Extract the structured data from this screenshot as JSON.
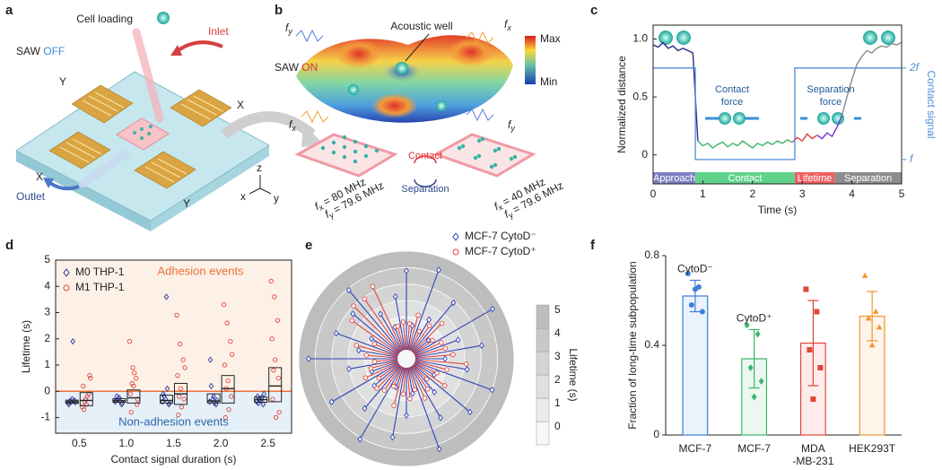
{
  "panel_labels": [
    "a",
    "b",
    "c",
    "d",
    "e",
    "f"
  ],
  "diagram_a": {
    "cell_loading": "Cell loading",
    "inlet": "Inlet",
    "saw": "SAW",
    "state": "OFF",
    "electrodes": [
      "Y",
      "X",
      "X",
      "Y"
    ],
    "outlet": "Outlet",
    "axes": [
      "z",
      "x",
      "y"
    ]
  },
  "diagram_b": {
    "saw": "SAW",
    "state": "ON",
    "well": "Acoustic well",
    "colorbar": [
      "Max",
      "Min"
    ],
    "sources": [
      {
        "symbol": "f",
        "sub": "y"
      },
      {
        "symbol": "f",
        "sub": "x"
      },
      {
        "symbol": "f",
        "sub": "x"
      },
      {
        "symbol": "f",
        "sub": "y"
      }
    ],
    "switch": [
      "Contact",
      "Separation"
    ],
    "arrays": [
      [
        {
          "symbol": "f",
          "sub": "x",
          "text": "= 80 MHz"
        },
        {
          "symbol": "f",
          "sub": "y",
          "text": "= 79.6 MHz"
        }
      ],
      [
        {
          "symbol": "f",
          "sub": "x",
          "text": "= 40 MHz"
        },
        {
          "symbol": "f",
          "sub": "y",
          "text": "= 79.6 MHz"
        }
      ]
    ]
  },
  "chart_data": [
    {
      "type": "line",
      "y_label": "Normalized distance",
      "x_label": "Time (s)",
      "y2_label": "Contact signal",
      "xlim": [
        0,
        5
      ],
      "ylim": [
        -0.25,
        1.12
      ],
      "xticks": [
        0,
        1,
        2,
        3,
        4,
        5
      ],
      "yticks": [
        0,
        0.5,
        {
          "value": 1,
          "label": "1.0"
        }
      ],
      "y2lim": [
        -0.25,
        1.12
      ],
      "y2ticks": [
        {
          "value": 0.75,
          "label": "2f"
        },
        {
          "value": -0.04,
          "label": "f"
        }
      ],
      "series": [
        {
          "color": "#2b2f86",
          "x": [
            0,
            0.1,
            0.2,
            0.3,
            0.4,
            0.5,
            0.6,
            0.7,
            0.8,
            0.85,
            0.9
          ],
          "values": [
            0.95,
            0.93,
            0.97,
            0.92,
            0.94,
            0.9,
            0.92,
            0.9,
            0.88,
            0.5,
            0.12
          ]
        },
        {
          "color": "#3db56a",
          "x": [
            0.9,
            1.0,
            1.1,
            1.2,
            1.3,
            1.4,
            1.5,
            1.6,
            1.7,
            1.8,
            1.9,
            2.0,
            2.1,
            2.2,
            2.3,
            2.4,
            2.5,
            2.6,
            2.7,
            2.8
          ],
          "values": [
            0.12,
            0.08,
            0.1,
            0.06,
            0.09,
            0.11,
            0.07,
            0.1,
            0.08,
            0.12,
            0.09,
            0.06,
            0.1,
            0.08,
            0.11,
            0.09,
            0.12,
            0.1,
            0.13,
            0.11
          ]
        },
        {
          "color": "#e23b3b",
          "x": [
            2.8,
            2.9,
            3.0,
            3.1,
            3.2,
            3.3
          ],
          "values": [
            0.11,
            0.15,
            0.12,
            0.18,
            0.14,
            0.17
          ]
        },
        {
          "color": "#7a2fd0",
          "x": [
            3.3,
            3.4,
            3.5,
            3.6,
            3.7,
            3.8
          ],
          "values": [
            0.17,
            0.14,
            0.19,
            0.16,
            0.24,
            0.34
          ]
        },
        {
          "color": "#8a8a8a",
          "x": [
            3.8,
            3.9,
            4.0,
            4.1,
            4.2,
            4.3,
            4.4,
            4.5,
            4.6,
            4.7,
            4.8,
            4.9,
            5.0
          ],
          "values": [
            0.34,
            0.5,
            0.65,
            0.78,
            0.85,
            0.9,
            0.88,
            0.92,
            0.94,
            0.93,
            0.96,
            0.95,
            0.97
          ]
        },
        {
          "color": "#4f8fd8",
          "axis": "y2",
          "x": [
            0,
            0.85,
            0.85,
            2.85,
            2.85,
            5
          ],
          "values": [
            0.75,
            0.75,
            -0.04,
            -0.04,
            0.75,
            0.75
          ]
        }
      ],
      "phases": [
        {
          "label": "Approach",
          "x": [
            0,
            0.85
          ],
          "color": "#7b7fc4"
        },
        {
          "label": "Contact",
          "x": [
            0.85,
            2.85
          ],
          "color": "#5fd38a"
        },
        {
          "label": "Lifetime",
          "x": [
            2.85,
            3.65
          ],
          "color": "#f06060"
        },
        {
          "label": "Separation",
          "x": [
            3.65,
            5
          ],
          "color": "#8c8c8c"
        }
      ],
      "annotations": [
        [
          "Contact",
          "force"
        ],
        [
          "Separation",
          "force"
        ]
      ]
    },
    {
      "type": "strip",
      "y_label": "Lifetime (s)",
      "x_label": "Contact signal duration (s)",
      "categories": [
        "0.5",
        "1.0",
        "1.5",
        "2.0",
        "2.5"
      ],
      "ylim": [
        -1.6,
        5
      ],
      "yticks": [
        -1,
        0,
        1,
        2,
        3,
        4,
        5
      ],
      "threshold": 0,
      "annotations": [
        "Adhesion events",
        "Non-adhesion events"
      ],
      "legend": "upper left",
      "series": [
        {
          "name": "M0 THP-1",
          "color": "#2d3a9e",
          "marker": "diamond",
          "values": [
            [
              -0.45,
              -0.4,
              -0.35,
              -0.5,
              -0.3,
              -0.42,
              -0.38,
              1.9
            ],
            [
              -0.4,
              -0.3,
              -0.5,
              -0.35,
              -0.25,
              -0.45,
              -0.2,
              -0.38
            ],
            [
              -0.4,
              -0.3,
              -0.5,
              -0.1,
              3.6,
              -0.45,
              -0.2,
              0.1
            ],
            [
              -0.4,
              -0.3,
              -0.5,
              1.2,
              -0.2,
              -0.35,
              0.2,
              -0.45
            ],
            [
              -0.4,
              -0.3,
              -0.5,
              -0.2,
              -0.35,
              -0.1,
              -0.45,
              -0.25
            ]
          ],
          "q1": [
            -0.46,
            -0.42,
            -0.45,
            -0.44,
            -0.42
          ],
          "median": [
            -0.4,
            -0.36,
            -0.35,
            -0.37,
            -0.32
          ],
          "q3": [
            -0.34,
            -0.28,
            -0.15,
            -0.1,
            -0.22
          ]
        },
        {
          "name": "M1 THP-1",
          "color": "#e0453a",
          "marker": "circle",
          "values": [
            [
              -0.6,
              -0.3,
              -0.1,
              0.2,
              -0.5,
              0.6,
              -0.7,
              -0.2,
              0.5,
              -0.4
            ],
            [
              1.9,
              0.9,
              0.5,
              -0.1,
              0.2,
              -0.5,
              -0.8,
              0.7,
              -0.3,
              0.3
            ],
            [
              2.9,
              1.8,
              1.2,
              0.6,
              0.1,
              -0.3,
              -0.9,
              -0.6,
              0.9,
              -0.2
            ],
            [
              3.3,
              2.6,
              1.9,
              1.0,
              0.4,
              -0.2,
              -1.0,
              -0.7,
              1.4,
              0.1
            ],
            [
              4.2,
              3.6,
              2.7,
              2.0,
              1.2,
              0.5,
              -0.3,
              -1.0,
              -0.8,
              0.8
            ]
          ],
          "q1": [
            -0.55,
            -0.45,
            -0.5,
            -0.45,
            -0.4
          ],
          "median": [
            -0.35,
            -0.25,
            -0.1,
            0.1,
            0.2
          ],
          "q3": [
            -0.05,
            0.05,
            0.3,
            0.6,
            0.9
          ]
        }
      ]
    },
    {
      "type": "polar",
      "colorbar_label": "Lifetime (s)",
      "rlim": [
        -1,
        5
      ],
      "rticks": [
        0,
        1,
        2,
        3,
        4,
        5
      ],
      "legend": "upper right",
      "series": [
        {
          "name": "MCF-7 CytoD⁻",
          "color": "#2f45b8",
          "marker": "diamond",
          "values": [
            3.8,
            0.5,
            4.2,
            1.2,
            2.9,
            0.2,
            4.5,
            1.8,
            3.1,
            0.8,
            2.2,
            4.0,
            0.4,
            3.5,
            1.1,
            2.6,
            4.3,
            0.6,
            1.9,
            3.3,
            0.3,
            4.1,
            2.4,
            1.0,
            3.7,
            0.7,
            2.0,
            4.4,
            1.4,
            3.0,
            0.9,
            2.7,
            3.9,
            1.6,
            0.5,
            2.3
          ]
        },
        {
          "name": "MCF-7 CytoD⁺",
          "color": "#e0453a",
          "marker": "circle",
          "values": [
            0.6,
            1.2,
            0.3,
            0.9,
            1.5,
            0.4,
            0.8,
            0.9,
            1.3,
            2.1,
            1.0,
            0.5,
            1.3,
            0.2,
            0.7,
            1.1,
            0.4,
            0.9,
            0.6,
            1.4,
            0.3,
            0.8,
            1.0,
            0.5,
            1.2,
            0.7,
            0.4,
            0.9,
            1.6,
            0.6,
            2.5,
            3.0,
            2.9,
            3.3,
            0.5,
            0.7
          ]
        }
      ]
    },
    {
      "type": "bar",
      "y_label": "Fraction of long-time subpopulation",
      "categories": [
        "MCF-7",
        "MCF-7",
        "MDA\n-MB-231",
        "HEK293T"
      ],
      "colors": [
        "#3b7fd9",
        "#3db56a",
        "#e0453a",
        "#f0962e"
      ],
      "values": [
        0.62,
        0.34,
        0.41,
        0.53
      ],
      "errors": [
        0.07,
        0.13,
        0.19,
        0.11
      ],
      "points": [
        [
          0.72,
          0.66,
          0.58,
          0.55,
          0.65
        ],
        [
          0.49,
          0.45,
          0.3,
          0.24,
          0.17
        ],
        [
          0.65,
          0.55,
          0.38,
          0.3,
          0.16
        ],
        [
          0.71,
          0.55,
          0.52,
          0.48,
          0.4
        ]
      ],
      "ylim": [
        0,
        0.8
      ],
      "yticks": [
        0,
        0.4,
        0.8
      ],
      "annotations": [
        {
          "label": "CytoD⁻",
          "category": 0
        },
        {
          "label": "CytoD⁺",
          "category": 1
        }
      ]
    }
  ]
}
